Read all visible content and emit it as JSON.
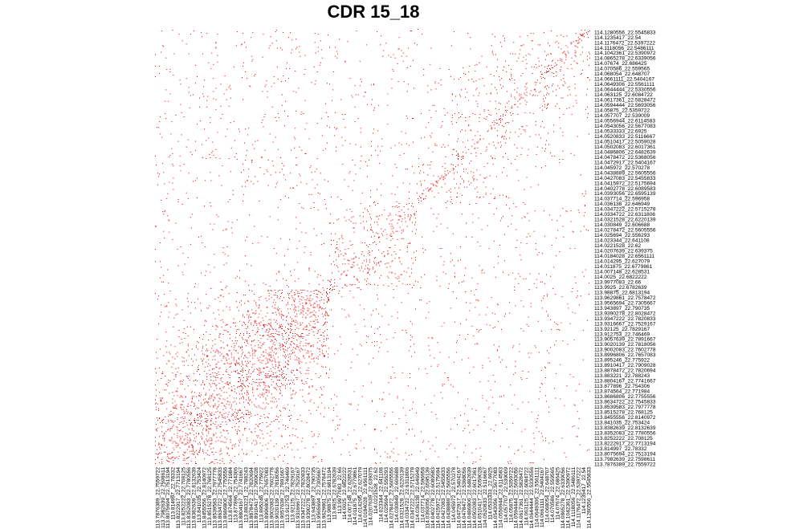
{
  "chart_data": {
    "type": "heatmap",
    "title": "CDR 15_18",
    "xlabel": "",
    "ylabel": "",
    "grid": false,
    "legend": "none",
    "colors": {
      "cell": "#e00000",
      "background": "#ffffff"
    },
    "row_labels": [
      "114.1280556_22.5545833",
      "114.1235417_22.54",
      "114.1176472_22.5397222",
      "114.1118056_22.5486111",
      "114.1042361_22.5390972",
      "114.0865278_22.6339056",
      "114.07674_22.686425",
      "114.070586_22.559565",
      "114.068054_22.648707",
      "114.0661111_22.5404167",
      "114.0649306_22.5561111",
      "114.0644444_22.5330556",
      "114.063125_22.6084722",
      "114.0617361_22.5828472",
      "114.0594444_22.5693056",
      "114.05875_22.5359722",
      "114.057707_22.539009",
      "114.0556944_22.6114583",
      "114.0543056_22.5677083",
      "114.0533333_22.6925",
      "114.0520833_22.5116667",
      "114.0510417_22.5059028",
      "114.0502083_22.6017361",
      "114.0486806_22.6482639",
      "114.0478472_22.5368056",
      "114.0472917_22.5404167",
      "114.045972_22.570278",
      "114.0438889_22.5605556",
      "114.0427083_22.5455833",
      "114.0415972_22.5175694",
      "114.0402778_22.6089583",
      "114.0393056_22.6595139",
      "114.037714_22.596958",
      "114.036138_22.646949",
      "114.0347222_22.5715278",
      "114.0334722_22.6311806",
      "114.0321528_22.6220139",
      "114.030849_22.606688",
      "114.0278472_22.5605556",
      "114.025694_22.556293",
      "114.023344_22.641108",
      "114.0221528_22.62",
      "114.0207639_22.639375",
      "114.0184028_22.6561111",
      "114.014295_22.627079",
      "114.011875_22.6779861",
      "114.007148_22.628531",
      "114.0025_22.6822222",
      "113.9977083_22.66",
      "113.9925_22.6782639",
      "113.98875_22.6813194",
      "113.9629861_22.7578472",
      "113.9565694_22.7305667",
      "113.943897_22.790735",
      "113.9390278_22.8028472",
      "113.9347222_22.7820833",
      "113.9316667_22.7529167",
      "113.92125_22.7829167",
      "113.912753_22.746469",
      "113.9057639_22.7891667",
      "113.9020139_22.7818056",
      "113.9002083_22.7602778",
      "113.8996806_22.7657083",
      "113.895246_22.775922",
      "113.8910417_22.7909028",
      "113.8878472_22.7820694",
      "113.883221_22.788243",
      "113.8804167_22.7741667",
      "113.877896_22.754306",
      "113.874564_22.771984",
      "113.8686806_22.7755556",
      "113.8634722_22.7545833",
      "113.8539583_22.7977778",
      "113.8515278_22.768125",
      "113.8455556_22.8140972",
      "113.841035_22.753424",
      "113.8382639_22.8132639",
      "113.8352083_22.7780556",
      "113.8252222_22.708125",
      "113.8222917_22.7713194",
      "113.814997_22.78332",
      "113.8075694_22.7513194",
      "113.7982639_22.7598611",
      "113.7876389_22.7559722"
    ],
    "col_labels": [
      "113.7876389_22.7559722",
      "113.7982639_22.7598611",
      "113.8075694_22.7513194",
      "113.814997_22.78332",
      "113.8222917_22.7713194",
      "113.8252222_22.708125",
      "113.8352083_22.7780556",
      "113.8382639_22.8132639",
      "113.841035_22.753424",
      "113.8455556_22.8140972",
      "113.8515278_22.768125",
      "113.8539583_22.7977778",
      "113.8634722_22.7545833",
      "113.8686806_22.7755556",
      "113.874564_22.771984",
      "113.877896_22.754306",
      "113.8804167_22.7741667",
      "113.883221_22.788243",
      "113.8878472_22.7820694",
      "113.8910417_22.7909028",
      "113.895246_22.775922",
      "113.8996806_22.7657083",
      "113.9002083_22.7602778",
      "113.9020139_22.7818056",
      "113.9057639_22.7891667",
      "113.912753_22.746469",
      "113.92125_22.7829167",
      "113.9316667_22.7529167",
      "113.9347222_22.7820833",
      "113.9390278_22.8028472",
      "113.943897_22.790735",
      "113.9565694_22.7305667",
      "113.9629861_22.7578472",
      "113.98875_22.6813194",
      "113.9925_22.6782639",
      "113.9977083_22.66",
      "114.0025_22.6822222",
      "114.007148_22.628531",
      "114.011875_22.6779861",
      "114.014295_22.627079",
      "114.0184028_22.6561111",
      "114.0207639_22.639375",
      "114.0221528_22.62",
      "114.023344_22.641108",
      "114.025694_22.556293",
      "114.0278472_22.5605556",
      "114.030849_22.606688",
      "114.0321528_22.6220139",
      "114.0334722_22.6311806",
      "114.0347222_22.5715278",
      "114.036138_22.646949",
      "114.037714_22.596958",
      "114.0393056_22.6595139",
      "114.0402778_22.6089583",
      "114.0415972_22.5175694",
      "114.0427083_22.5455833",
      "114.0438889_22.5605556",
      "114.045972_22.570278",
      "114.0472917_22.5404167",
      "114.0478472_22.5368056",
      "114.0486806_22.6482639",
      "114.0502083_22.6017361",
      "114.0510417_22.5059028",
      "114.0520833_22.5116667",
      "114.0533333_22.6925",
      "114.0543056_22.5677083",
      "114.0556944_22.6114583",
      "114.057707_22.539009",
      "114.05875_22.5359722",
      "114.0594444_22.5693056",
      "114.0617361_22.5828472",
      "114.063125_22.6084722",
      "114.0644444_22.5330556",
      "114.0649306_22.5561111",
      "114.0661111_22.5404167",
      "114.068054_22.648707",
      "114.070586_22.559565",
      "114.07674_22.686425",
      "114.0865278_22.6339056",
      "114.1042361_22.5390972",
      "114.1118056_22.5486111",
      "114.1176472_22.5397222",
      "114.1235417_22.54",
      "114.1280556_22.5545833"
    ],
    "matrix_size": 532,
    "cell_density": {
      "diagonal": 0.12,
      "near_diagonal": 0.07,
      "low_block": 0.1,
      "mid_block": 0.045,
      "high_block": 0.03,
      "background": 0.008
    },
    "cell_blocks": [
      {
        "from": 0,
        "to": 0.4,
        "level": "low_block"
      },
      {
        "from": 0.4,
        "to": 0.6,
        "level": "mid_block"
      },
      {
        "from": 0.6,
        "to": 1,
        "level": "high_block"
      }
    ],
    "random_seed": 1518
  }
}
